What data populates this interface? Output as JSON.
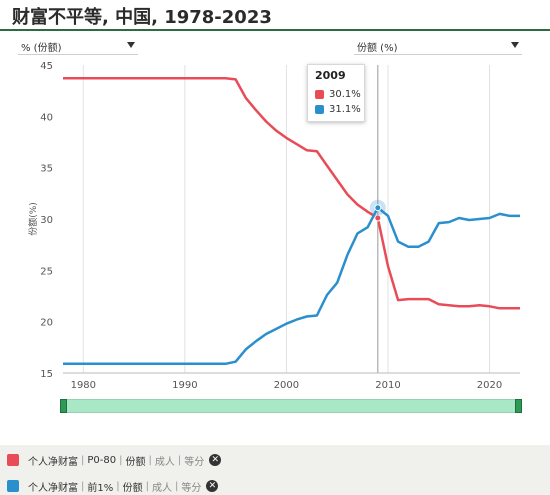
{
  "title": "财富不平等, 中国, 1978-2023",
  "dropdowns": {
    "left": "% (份额)",
    "right": "份额 (%)"
  },
  "colors": {
    "red": "#e74c57",
    "blue": "#2a8fcd",
    "brand_green": "#2e6b40",
    "slider": "#a8e8c6"
  },
  "tooltip": {
    "year": "2009",
    "rows": [
      {
        "value": "30.1%",
        "color": "#e74c57"
      },
      {
        "value": "31.1%",
        "color": "#2a8fcd"
      }
    ]
  },
  "legend": [
    {
      "label": "个人净财富",
      "parts": [
        "P0-80",
        "份额"
      ],
      "muted": [
        "成人",
        "等分"
      ],
      "color": "#e74c57"
    },
    {
      "label": "个人净财富",
      "parts": [
        "前1%",
        "份额"
      ],
      "muted": [
        "成人",
        "等分"
      ],
      "color": "#2a8fcd"
    }
  ],
  "chart_data": {
    "type": "line",
    "title": "财富不平等, 中国, 1978-2023",
    "ylabel": "份额(%)",
    "xlabel": "",
    "xlim": [
      1978,
      2023
    ],
    "ylim": [
      15,
      45
    ],
    "yticks": [
      15,
      20,
      25,
      30,
      35,
      40,
      45
    ],
    "xticks": [
      1980,
      1990,
      2000,
      2010,
      2020
    ],
    "grid": "vertical",
    "highlight_x": 2009,
    "series": [
      {
        "name": "个人净财富 | P0-80 | 份额 | 成人 | 等分",
        "color": "#e74c57",
        "x": [
          1978,
          1979,
          1980,
          1981,
          1982,
          1983,
          1984,
          1985,
          1986,
          1987,
          1988,
          1989,
          1990,
          1991,
          1992,
          1993,
          1994,
          1995,
          1996,
          1997,
          1998,
          1999,
          2000,
          2001,
          2002,
          2003,
          2004,
          2005,
          2006,
          2007,
          2008,
          2009,
          2010,
          2011,
          2012,
          2013,
          2014,
          2015,
          2016,
          2017,
          2018,
          2019,
          2020,
          2021,
          2022,
          2023
        ],
        "values": [
          43.7,
          43.7,
          43.7,
          43.7,
          43.7,
          43.7,
          43.7,
          43.7,
          43.7,
          43.7,
          43.7,
          43.7,
          43.7,
          43.7,
          43.7,
          43.7,
          43.7,
          43.6,
          41.8,
          40.6,
          39.5,
          38.6,
          37.9,
          37.3,
          36.7,
          36.6,
          35.2,
          33.8,
          32.4,
          31.4,
          30.7,
          30.1,
          25.4,
          22.1,
          22.2,
          22.2,
          22.2,
          21.7,
          21.6,
          21.5,
          21.5,
          21.6,
          21.5,
          21.3,
          21.3,
          21.3
        ]
      },
      {
        "name": "个人净财富 | 前1% | 份额 | 成人 | 等分",
        "color": "#2a8fcd",
        "x": [
          1978,
          1979,
          1980,
          1981,
          1982,
          1983,
          1984,
          1985,
          1986,
          1987,
          1988,
          1989,
          1990,
          1991,
          1992,
          1993,
          1994,
          1995,
          1996,
          1997,
          1998,
          1999,
          2000,
          2001,
          2002,
          2003,
          2004,
          2005,
          2006,
          2007,
          2008,
          2009,
          2010,
          2011,
          2012,
          2013,
          2014,
          2015,
          2016,
          2017,
          2018,
          2019,
          2020,
          2021,
          2022,
          2023
        ],
        "values": [
          15.9,
          15.9,
          15.9,
          15.9,
          15.9,
          15.9,
          15.9,
          15.9,
          15.9,
          15.9,
          15.9,
          15.9,
          15.9,
          15.9,
          15.9,
          15.9,
          15.9,
          16.1,
          17.3,
          18.1,
          18.8,
          19.3,
          19.8,
          20.2,
          20.5,
          20.6,
          22.6,
          23.8,
          26.5,
          28.6,
          29.2,
          31.1,
          30.3,
          27.8,
          27.3,
          27.3,
          27.8,
          29.6,
          29.7,
          30.1,
          29.9,
          30.0,
          30.1,
          30.5,
          30.3,
          30.3
        ]
      }
    ]
  }
}
